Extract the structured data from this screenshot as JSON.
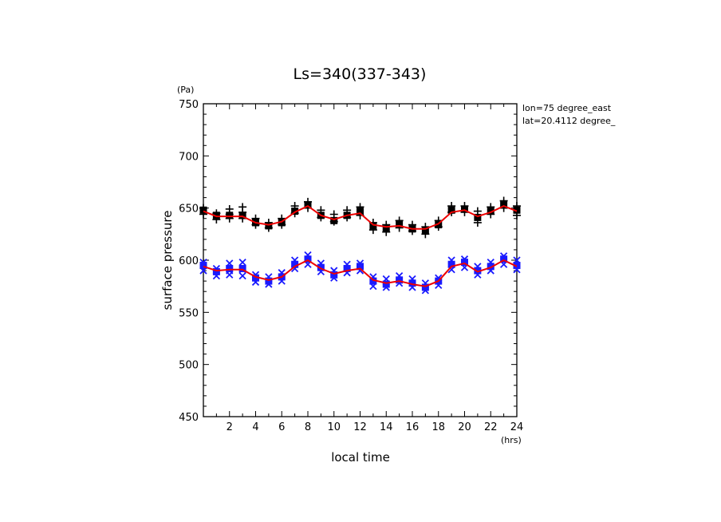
{
  "chart_data": {
    "type": "scatter",
    "title": "Ls=340(337-343)",
    "xlabel": "local time",
    "ylabel": "surface pressure",
    "x_unit": "(hrs)",
    "y_unit": "(Pa)",
    "xlim": [
      0,
      24
    ],
    "ylim": [
      450,
      750
    ],
    "x_ticks": [
      2,
      4,
      6,
      8,
      10,
      12,
      14,
      16,
      18,
      20,
      22,
      24
    ],
    "y_ticks": [
      450,
      500,
      550,
      600,
      650,
      700,
      750
    ],
    "annotations": [
      "lon=75 degree_east",
      "lat=20.4112 degree_"
    ],
    "grid": false,
    "series": [
      {
        "marker": "square",
        "color": "#000000",
        "x": [
          0,
          1,
          2,
          3,
          4,
          5,
          6,
          7,
          8,
          9,
          10,
          11,
          12,
          13,
          14,
          15,
          16,
          17,
          18,
          19,
          20,
          21,
          22,
          23,
          24
        ],
        "values": [
          648,
          643,
          643,
          643,
          636,
          633,
          636,
          647,
          653,
          643,
          638,
          643,
          647,
          633,
          631,
          635,
          630,
          629,
          634,
          648,
          649,
          641,
          647,
          653,
          648
        ]
      },
      {
        "marker": "plus",
        "color": "#000000",
        "x": [
          0,
          0,
          1,
          1,
          2,
          2,
          2,
          3,
          3,
          3,
          4,
          4,
          5,
          5,
          6,
          6,
          7,
          7,
          8,
          8,
          9,
          9,
          10,
          10,
          11,
          11,
          12,
          12,
          13,
          13,
          14,
          14,
          15,
          15,
          16,
          16,
          17,
          17,
          18,
          18,
          19,
          19,
          20,
          20,
          21,
          21,
          22,
          22,
          23,
          23,
          24,
          24
        ],
        "values": [
          650,
          644,
          645,
          639,
          649,
          644,
          640,
          651,
          646,
          640,
          640,
          634,
          636,
          631,
          640,
          634,
          652,
          645,
          656,
          650,
          648,
          641,
          644,
          637,
          648,
          641,
          651,
          643,
          636,
          629,
          634,
          627,
          638,
          631,
          634,
          628,
          632,
          625,
          638,
          632,
          652,
          646,
          652,
          646,
          647,
          636,
          651,
          644,
          657,
          650,
          652,
          643
        ]
      },
      {
        "marker": "square",
        "color": "#1a1aff",
        "x": [
          0,
          1,
          2,
          3,
          4,
          5,
          6,
          7,
          8,
          9,
          10,
          11,
          12,
          13,
          14,
          15,
          16,
          17,
          18,
          19,
          20,
          21,
          22,
          23,
          24
        ],
        "values": [
          595,
          589,
          592,
          592,
          583,
          580,
          584,
          596,
          601,
          593,
          586,
          592,
          594,
          580,
          577,
          581,
          578,
          574,
          580,
          596,
          598,
          590,
          594,
          601,
          595
        ]
      },
      {
        "marker": "cross",
        "color": "#1a1aff",
        "x": [
          0,
          0,
          1,
          1,
          2,
          2,
          2,
          3,
          3,
          3,
          4,
          4,
          5,
          5,
          6,
          6,
          7,
          7,
          8,
          8,
          9,
          9,
          10,
          10,
          11,
          11,
          12,
          12,
          13,
          13,
          14,
          14,
          15,
          15,
          16,
          16,
          17,
          17,
          18,
          18,
          19,
          19,
          20,
          20,
          21,
          21,
          22,
          22,
          23,
          23,
          24,
          24
        ],
        "values": [
          598,
          590,
          592,
          585,
          597,
          590,
          586,
          598,
          591,
          585,
          586,
          579,
          584,
          577,
          588,
          580,
          600,
          592,
          605,
          596,
          597,
          589,
          590,
          583,
          596,
          588,
          597,
          590,
          584,
          575,
          582,
          574,
          585,
          578,
          582,
          574,
          578,
          571,
          583,
          576,
          600,
          591,
          601,
          593,
          594,
          586,
          598,
          590,
          604,
          596,
          600,
          591
        ]
      },
      {
        "marker": "line",
        "color": "#ee0000",
        "x": [
          0,
          1,
          2,
          3,
          4,
          5,
          6,
          7,
          8,
          9,
          10,
          11,
          12,
          13,
          14,
          15,
          16,
          17,
          18,
          19,
          20,
          21,
          22,
          23,
          24
        ],
        "values": [
          647,
          642,
          642,
          642,
          636,
          634,
          637,
          646,
          652,
          643,
          639,
          643,
          645,
          634,
          632,
          633,
          630,
          630,
          635,
          646,
          648,
          642,
          646,
          652,
          647
        ]
      },
      {
        "marker": "line",
        "color": "#ee0000",
        "x": [
          0,
          1,
          2,
          3,
          4,
          5,
          6,
          7,
          8,
          9,
          10,
          11,
          12,
          13,
          14,
          15,
          16,
          17,
          18,
          19,
          20,
          21,
          22,
          23,
          24
        ],
        "values": [
          594,
          590,
          591,
          591,
          584,
          581,
          584,
          594,
          600,
          592,
          587,
          590,
          592,
          581,
          578,
          580,
          577,
          575,
          580,
          594,
          597,
          589,
          593,
          600,
          594
        ]
      }
    ]
  }
}
